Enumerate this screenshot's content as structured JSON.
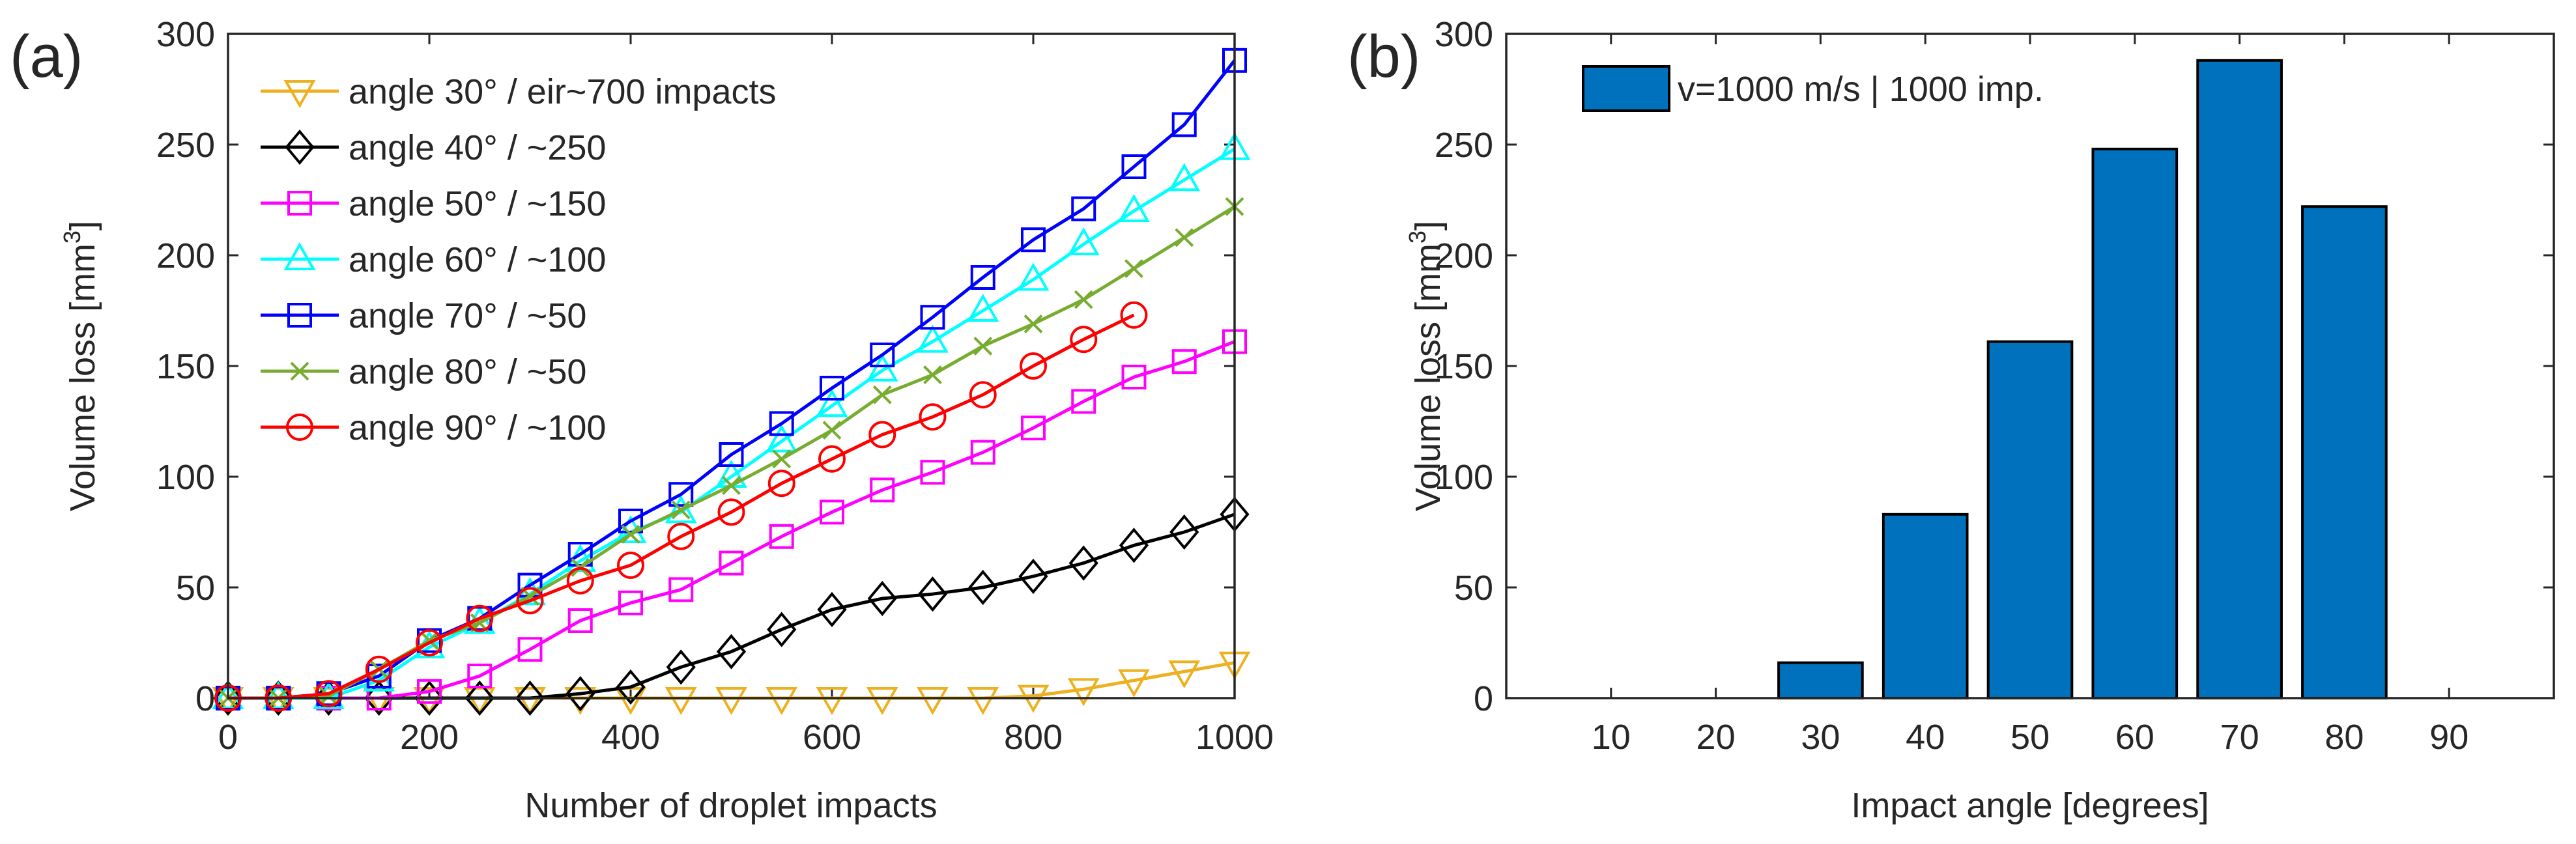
{
  "chart_data": [
    {
      "panel_label": "(a)",
      "type": "line",
      "xlabel": "Number of droplet impacts",
      "ylabel_main": "Volume loss [mm",
      "ylabel_sup": "3",
      "ylabel_tail": "]",
      "xlim": [
        0,
        1000
      ],
      "ylim": [
        0,
        300
      ],
      "xticks": [
        0,
        200,
        400,
        600,
        800,
        1000
      ],
      "yticks": [
        0,
        50,
        100,
        150,
        200,
        250,
        300
      ],
      "legend_position": "top-left",
      "series": [
        {
          "name": "angle 30° / eir~700 impacts",
          "color": "#EDB120",
          "marker": "triangle-down",
          "x": [
            0,
            50,
            100,
            150,
            200,
            250,
            300,
            350,
            400,
            450,
            500,
            550,
            600,
            650,
            700,
            750,
            800,
            850,
            900,
            950,
            1000
          ],
          "y": [
            0,
            0,
            0,
            0,
            0,
            0,
            0,
            0,
            0,
            0,
            0,
            0,
            0,
            0,
            0,
            0,
            1,
            4,
            8,
            12,
            16
          ]
        },
        {
          "name": "angle 40° / ~250",
          "color": "#000000",
          "marker": "diamond",
          "x": [
            0,
            50,
            100,
            150,
            200,
            250,
            300,
            350,
            400,
            450,
            500,
            550,
            600,
            650,
            700,
            750,
            800,
            850,
            900,
            950,
            1000
          ],
          "y": [
            0,
            0,
            0,
            0,
            0,
            0,
            0,
            2,
            5,
            14,
            21,
            31,
            40,
            45,
            47,
            50,
            55,
            61,
            69,
            75,
            83
          ]
        },
        {
          "name": "angle 50° / ~150",
          "color": "#FF00FF",
          "marker": "square",
          "x": [
            0,
            50,
            100,
            150,
            200,
            250,
            300,
            350,
            400,
            450,
            500,
            550,
            600,
            650,
            700,
            750,
            800,
            850,
            900,
            950,
            1000
          ],
          "y": [
            0,
            0,
            0,
            0,
            3,
            10,
            22,
            35,
            43,
            49,
            61,
            73,
            84,
            94,
            102,
            111,
            122,
            134,
            145,
            152,
            161
          ]
        },
        {
          "name": "angle 60° / ~100",
          "color": "#00FFFF",
          "marker": "triangle-up",
          "x": [
            0,
            50,
            100,
            150,
            200,
            250,
            300,
            350,
            400,
            450,
            500,
            550,
            600,
            650,
            700,
            750,
            800,
            850,
            900,
            950,
            1000
          ],
          "y": [
            0,
            0,
            0,
            8,
            23,
            34,
            47,
            62,
            75,
            84,
            100,
            116,
            132,
            148,
            161,
            175,
            189,
            205,
            220,
            234,
            248
          ]
        },
        {
          "name": "angle 70° / ~50",
          "color": "#0000FF",
          "marker": "square",
          "x": [
            0,
            50,
            100,
            150,
            200,
            250,
            300,
            350,
            400,
            450,
            500,
            550,
            600,
            650,
            700,
            750,
            800,
            850,
            900,
            950,
            1000
          ],
          "y": [
            0,
            0,
            2,
            10,
            26,
            36,
            51,
            65,
            80,
            92,
            110,
            124,
            140,
            155,
            172,
            190,
            207,
            221,
            240,
            259,
            288
          ]
        },
        {
          "name": "angle 80° / ~50",
          "color": "#77AC30",
          "marker": "x",
          "x": [
            0,
            50,
            100,
            150,
            200,
            250,
            300,
            350,
            400,
            450,
            500,
            550,
            600,
            650,
            700,
            750,
            800,
            850,
            900,
            950,
            1000
          ],
          "y": [
            0,
            0,
            1,
            13,
            26,
            34,
            46,
            59,
            74,
            85,
            96,
            108,
            121,
            137,
            146,
            159,
            169,
            180,
            194,
            208,
            222
          ]
        },
        {
          "name": "angle 90° / ~100",
          "color": "#FF0000",
          "marker": "circle",
          "x": [
            0,
            50,
            100,
            150,
            200,
            250,
            300,
            350,
            400,
            450,
            500,
            550,
            600,
            650,
            700,
            750,
            800,
            850,
            900
          ],
          "y": [
            0,
            0,
            2,
            13,
            25,
            36,
            44,
            53,
            60,
            73,
            84,
            97,
            108,
            119,
            127,
            137,
            150,
            162,
            173
          ]
        }
      ]
    },
    {
      "panel_label": "(b)",
      "type": "bar",
      "xlabel": "Impact angle [degrees]",
      "ylabel_main": "Volume loss [mm",
      "ylabel_sup": "3",
      "ylabel_tail": "]",
      "xlim": [
        0,
        100
      ],
      "ylim": [
        0,
        300
      ],
      "xticks": [
        10,
        20,
        30,
        40,
        50,
        60,
        70,
        80,
        90
      ],
      "yticks": [
        0,
        50,
        100,
        150,
        200,
        250,
        300
      ],
      "bar_color": "#0072BD",
      "legend_position": "top-left",
      "series": [
        {
          "name": "v=1000 m/s | 1000 imp.",
          "categories": [
            10,
            20,
            30,
            40,
            50,
            60,
            70,
            80,
            90
          ],
          "values": [
            0,
            0,
            16,
            83,
            161,
            248,
            288,
            222,
            0
          ]
        }
      ]
    }
  ]
}
